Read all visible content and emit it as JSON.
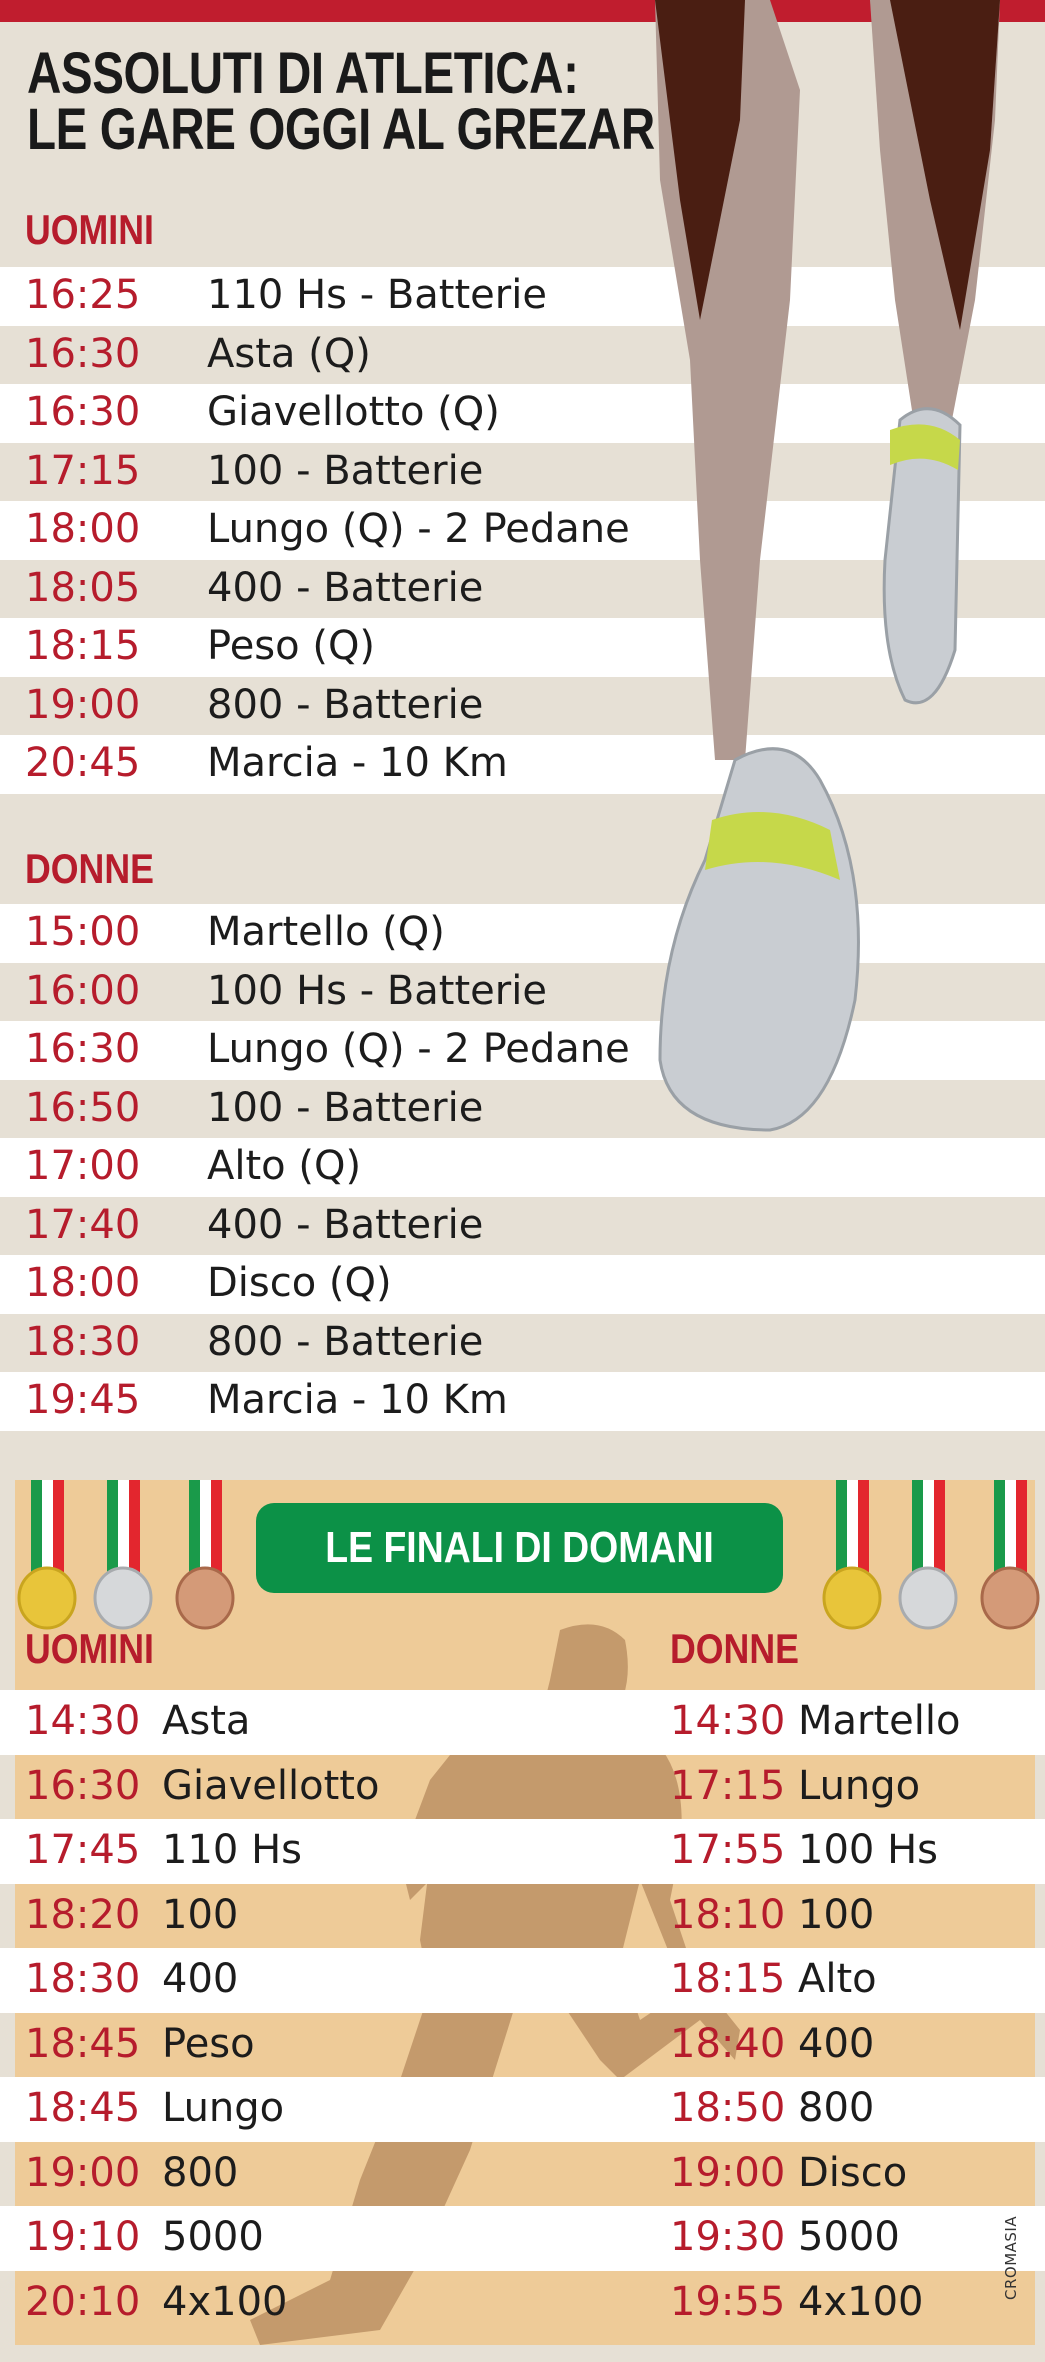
{
  "title": {
    "line1": "ASSOLUTI DI ATLETICA:",
    "line2": "LE GARE OGGI AL GREZAR"
  },
  "today": {
    "men": {
      "heading": "UOMINI",
      "rows": [
        {
          "time": "16:25",
          "event": "110 Hs - Batterie"
        },
        {
          "time": "16:30",
          "event": "Asta (Q)"
        },
        {
          "time": "16:30",
          "event": "Giavellotto (Q)"
        },
        {
          "time": "17:15",
          "event": "100 - Batterie"
        },
        {
          "time": "18:00",
          "event": "Lungo (Q) - 2 Pedane"
        },
        {
          "time": "18:05",
          "event": "400 - Batterie"
        },
        {
          "time": "18:15",
          "event": "Peso (Q)"
        },
        {
          "time": "19:00",
          "event": "800 - Batterie"
        },
        {
          "time": "20:45",
          "event": "Marcia - 10 Km"
        }
      ]
    },
    "women": {
      "heading": "DONNE",
      "rows": [
        {
          "time": "15:00",
          "event": "Martello (Q)"
        },
        {
          "time": "16:00",
          "event": "100 Hs - Batterie"
        },
        {
          "time": "16:30",
          "event": "Lungo (Q) - 2 Pedane"
        },
        {
          "time": "16:50",
          "event": "100 - Batterie"
        },
        {
          "time": "17:00",
          "event": "Alto (Q)"
        },
        {
          "time": "17:40",
          "event": "400 - Batterie"
        },
        {
          "time": "18:00",
          "event": "Disco (Q)"
        },
        {
          "time": "18:30",
          "event": "800 - Batterie"
        },
        {
          "time": "19:45",
          "event": "Marcia - 10 Km"
        }
      ]
    }
  },
  "finals": {
    "banner": "LE FINALI DI DOMANI",
    "men": {
      "heading": "UOMINI",
      "rows": [
        {
          "time": "14:30",
          "event": "Asta"
        },
        {
          "time": "16:30",
          "event": "Giavellotto"
        },
        {
          "time": "17:45",
          "event": "110 Hs"
        },
        {
          "time": "18:20",
          "event": "100"
        },
        {
          "time": "18:30",
          "event": "400"
        },
        {
          "time": "18:45",
          "event": "Peso"
        },
        {
          "time": "18:45",
          "event": "Lungo"
        },
        {
          "time": "19:00",
          "event": "800"
        },
        {
          "time": "19:10",
          "event": "5000"
        },
        {
          "time": "20:10",
          "event": "4x100"
        }
      ]
    },
    "women": {
      "heading": "DONNE",
      "rows": [
        {
          "time": "14:30",
          "event": "Martello"
        },
        {
          "time": "17:15",
          "event": "Lungo"
        },
        {
          "time": "17:55",
          "event": "100 Hs"
        },
        {
          "time": "18:10",
          "event": "100"
        },
        {
          "time": "18:15",
          "event": "Alto"
        },
        {
          "time": "18:40",
          "event": "400"
        },
        {
          "time": "18:50",
          "event": "800"
        },
        {
          "time": "19:00",
          "event": "Disco"
        },
        {
          "time": "19:30",
          "event": "5000"
        },
        {
          "time": "19:55",
          "event": "4x100"
        }
      ]
    }
  },
  "credit": "CROMASIA",
  "colors": {
    "accent_red": "#b61c2c",
    "banner_green": "#0c9147",
    "panel_tan": "#eecb98",
    "background": "#e6e0d5"
  }
}
